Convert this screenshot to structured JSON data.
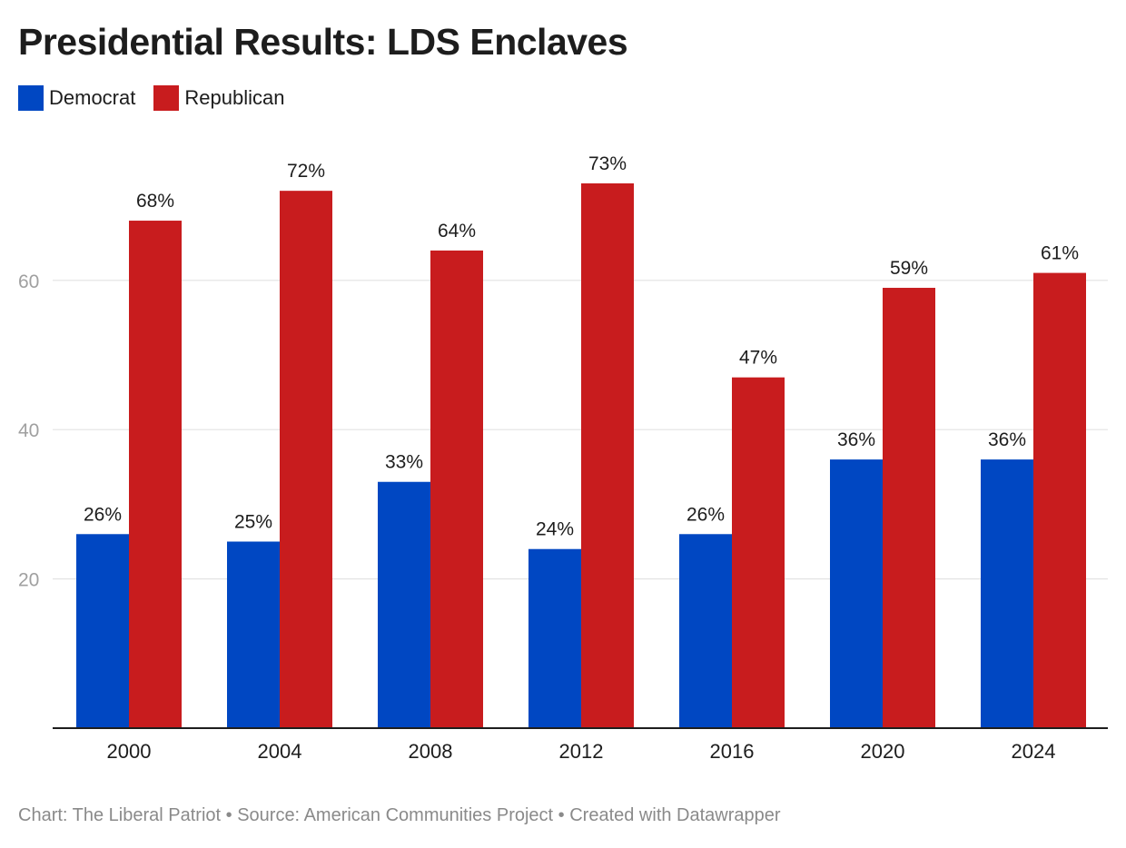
{
  "title": "Presidential Results: LDS Enclaves",
  "legend": {
    "democrat": "Democrat",
    "republican": "Republican"
  },
  "colors": {
    "democrat": "#0047c2",
    "republican": "#c81c1e"
  },
  "footer": "Chart: The Liberal Patriot • Source: American Communities Project • Created with Datawrapper",
  "chart_data": {
    "type": "bar",
    "title": "Presidential Results: LDS Enclaves",
    "categories": [
      "2000",
      "2004",
      "2008",
      "2012",
      "2016",
      "2020",
      "2024"
    ],
    "series": [
      {
        "name": "Democrat",
        "values": [
          26,
          25,
          33,
          24,
          26,
          36,
          36
        ],
        "color": "#0047c2"
      },
      {
        "name": "Republican",
        "values": [
          68,
          72,
          64,
          73,
          47,
          59,
          61
        ],
        "color": "#c81c1e"
      }
    ],
    "value_labels": {
      "Democrat": [
        "26%",
        "25%",
        "33%",
        "24%",
        "26%",
        "36%",
        "36%"
      ],
      "Republican": [
        "68%",
        "72%",
        "64%",
        "73%",
        "47%",
        "59%",
        "61%"
      ]
    },
    "yticks": [
      "20",
      "40",
      "60"
    ],
    "ylim": [
      0,
      80
    ],
    "grid": true,
    "legend_position": "top-left"
  }
}
